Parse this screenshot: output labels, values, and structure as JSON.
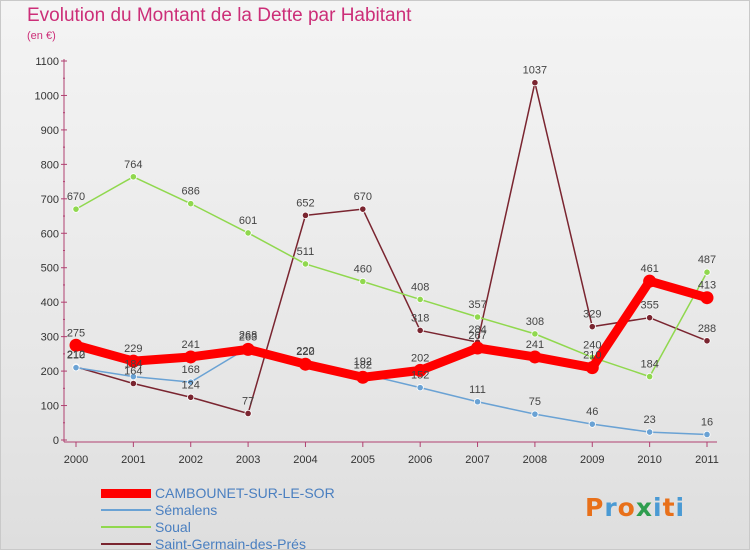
{
  "title": "Evolution du Montant de la Dette par Habitant",
  "unit_label": "(en €)",
  "logo_text": "Proxiti",
  "logo_colors": [
    "#e8701a",
    "#4a9ad4",
    "#e8701a",
    "#2f9e4f",
    "#4a9ad4",
    "#e8701a",
    "#4a9ad4"
  ],
  "chart_data": {
    "type": "line",
    "title": "Evolution du Montant de la Dette par Habitant",
    "ylabel": "(en €)",
    "xlabel": "",
    "x": [
      "2000",
      "2001",
      "2002",
      "2003",
      "2004",
      "2005",
      "2006",
      "2007",
      "2008",
      "2009",
      "2010",
      "2011"
    ],
    "ylim": [
      0,
      1100
    ],
    "yticks": [
      "0",
      "100",
      "200",
      "300",
      "400",
      "500",
      "600",
      "700",
      "800",
      "900",
      "1000",
      "1100"
    ],
    "grid": false,
    "legend_position": "bottom-left",
    "series": [
      {
        "name": "CAMBOUNET-SUR-LE-SOR",
        "color": "#ff0000",
        "values": [
          275,
          229,
          241,
          263,
          220,
          182,
          202,
          267,
          241,
          210,
          461,
          413
        ],
        "labels": [
          "275",
          "229",
          "241",
          "263",
          "220",
          "182",
          "202",
          "267",
          "241",
          "210",
          "461",
          "413"
        ]
      },
      {
        "name": "Sémalens",
        "color": "#6aa2d4",
        "values": [
          210,
          184,
          168,
          268,
          222,
          192,
          152,
          111,
          75,
          46,
          23,
          16
        ],
        "labels": [
          "210",
          "184",
          "168",
          "268",
          "222",
          "192",
          "152",
          "111",
          "75",
          "46",
          "23",
          "16"
        ]
      },
      {
        "name": "Soual",
        "color": "#90d84e",
        "values": [
          670,
          764,
          686,
          601,
          511,
          460,
          408,
          357,
          308,
          240,
          184,
          487
        ],
        "labels": [
          "670",
          "764",
          "686",
          "601",
          "511",
          "460",
          "408",
          "357",
          "308",
          "240",
          "184",
          "487"
        ]
      },
      {
        "name": "Saint-Germain-des-Prés",
        "color": "#7a2530",
        "values": [
          212,
          164,
          124,
          77,
          652,
          670,
          318,
          284,
          1037,
          329,
          355,
          288
        ],
        "labels": [
          "212",
          "164",
          "124",
          "77",
          "652",
          "670",
          "318",
          "284",
          "1037",
          "329",
          "355",
          "288"
        ]
      }
    ]
  }
}
